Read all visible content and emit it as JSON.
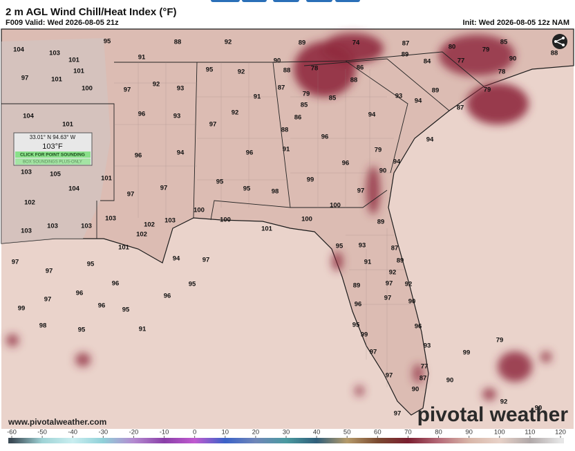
{
  "header": {
    "title": "2 m AGL Wind Chill/Heat Index (°F)",
    "valid": "F009 Valid: Wed 2026-08-05 21z",
    "init": "Init: Wed 2026-08-05 12z NAM"
  },
  "popup": {
    "coords": "33.01° N 94.63° W",
    "value": "103°F",
    "button": "CLICK FOR POINT SOUNDING",
    "note": "BOX SOUNDINGS PLUS-ONLY"
  },
  "watermark": "www.pivotalweather.com",
  "logo": "pivotal weather",
  "map": {
    "labels": [
      104,
      103,
      101,
      95,
      91,
      88,
      92,
      89,
      74,
      87,
      80,
      79,
      85,
      88,
      97,
      101,
      101,
      100,
      97,
      92,
      93,
      95,
      92,
      90,
      88,
      78,
      86,
      89,
      84,
      77,
      90,
      78,
      79,
      104,
      101,
      96,
      93,
      97,
      91,
      92,
      87,
      79,
      85,
      85,
      88,
      93,
      94,
      89,
      87,
      94,
      86,
      88,
      96,
      94,
      103,
      105,
      104,
      101,
      96,
      94,
      97,
      97,
      95,
      96,
      95,
      98,
      91,
      96,
      99,
      79,
      90,
      94,
      97,
      100,
      102,
      103,
      103,
      103,
      103,
      102,
      102,
      101,
      103,
      100,
      100,
      101,
      100,
      89,
      97,
      95,
      97,
      94,
      97,
      96,
      95,
      96,
      97,
      96,
      96,
      95,
      99,
      98,
      95,
      91,
      95,
      93,
      91,
      87,
      89,
      92,
      89,
      97,
      92,
      97,
      90,
      96,
      95,
      99,
      96,
      93,
      97,
      77,
      87,
      97,
      90,
      90,
      99,
      79,
      92,
      90,
      97
    ]
  },
  "colorbar": {
    "ticks": [
      -60,
      -50,
      -40,
      -30,
      -20,
      -10,
      0,
      10,
      20,
      30,
      40,
      50,
      60,
      70,
      80,
      90,
      100,
      110,
      120
    ],
    "colors": [
      "#3b4a55",
      "#9fd3d6",
      "#c9eef0",
      "#8fd0d8",
      "#b48ad0",
      "#8a3fa8",
      "#c05ad0",
      "#3a62c8",
      "#6f86b8",
      "#4a9aa0",
      "#2f5e7a",
      "#b59a6a",
      "#7a4a30",
      "#7a1e30",
      "#b56a78",
      "#d8b6a8",
      "#e8d2c8",
      "#b0a8a8",
      "#e6e6e6"
    ]
  }
}
